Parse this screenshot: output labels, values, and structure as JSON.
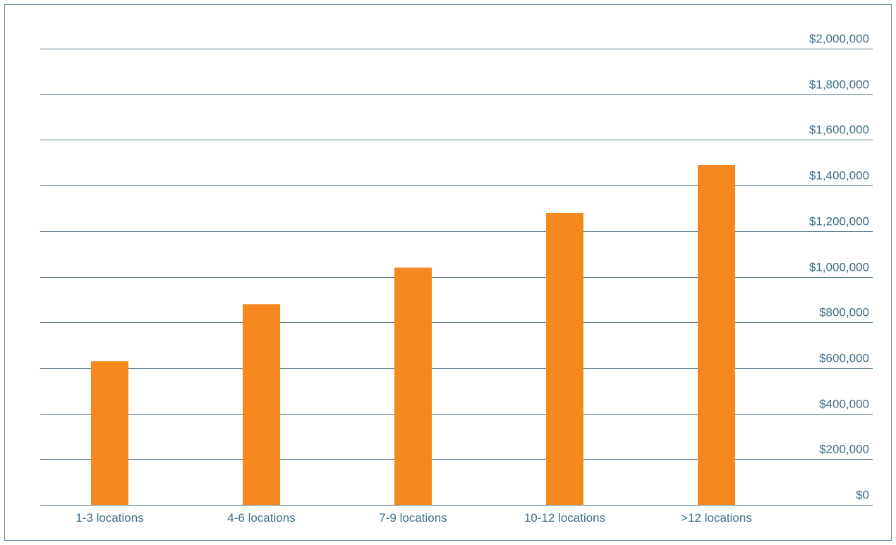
{
  "chart_data": {
    "type": "bar",
    "title": "",
    "xlabel": "",
    "ylabel": "",
    "categories": [
      "1-3 locations",
      "4-6 locations",
      "7-9 locations",
      "10-12 locations",
      ">12 locations"
    ],
    "values": [
      630000,
      880000,
      1040000,
      1280000,
      1490000
    ],
    "ylim": [
      0,
      2000000
    ],
    "ytick_labels": [
      "$0",
      "$200,000",
      "$400,000",
      "$600,000",
      "$800,000",
      "$1,000,000",
      "$1,200,000",
      "$1,400,000",
      "$1,600,000",
      "$1,800,000",
      "$2,000,000"
    ],
    "ytick_values": [
      0,
      200000,
      400000,
      600000,
      800000,
      1000000,
      1200000,
      1400000,
      1600000,
      1800000,
      2000000
    ],
    "y_axis_side": "right",
    "grid": true,
    "legend": "none",
    "bar_color": "#f5891f",
    "grid_color": "#4f7485",
    "label_color": "#3f6d85"
  }
}
